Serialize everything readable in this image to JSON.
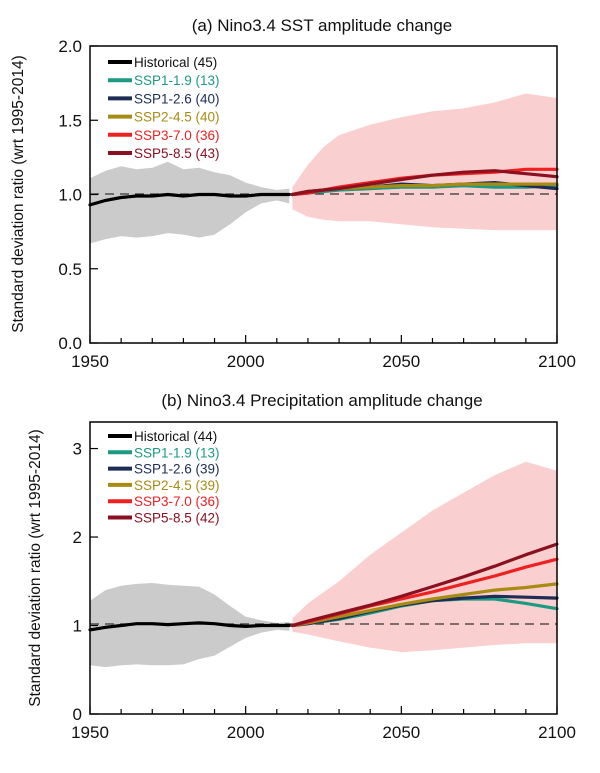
{
  "chart_data": [
    {
      "type": "line",
      "title": "(a) Nino3.4 SST amplitude change",
      "xlabel": "",
      "ylabel": "Standard deviation ratio (wrt 1995-2014)",
      "xlim": [
        1950,
        2100
      ],
      "ylim": [
        0,
        2
      ],
      "xticks": [
        1950,
        2000,
        2050,
        2100
      ],
      "yticks": [
        "0.0",
        "0.5",
        "1.0",
        "1.5",
        "2.0"
      ],
      "reference_line": 1.0,
      "legend_position": "top-left",
      "grid": false,
      "series": [
        {
          "name": "Historical (45)",
          "color": "#000000",
          "band_color": "#c8c8c8",
          "x": [
            1950,
            1955,
            1960,
            1965,
            1970,
            1975,
            1980,
            1985,
            1990,
            1995,
            2000,
            2005,
            2010,
            2014
          ],
          "y": [
            0.93,
            0.96,
            0.98,
            0.99,
            0.99,
            1.0,
            0.99,
            1.0,
            1.0,
            0.99,
            0.99,
            1.0,
            1.0,
            1.0
          ],
          "band_low": [
            0.67,
            0.7,
            0.72,
            0.71,
            0.72,
            0.74,
            0.73,
            0.71,
            0.73,
            0.8,
            0.88,
            0.94,
            0.96,
            0.94
          ],
          "band_high": [
            1.11,
            1.16,
            1.19,
            1.17,
            1.18,
            1.22,
            1.17,
            1.18,
            1.15,
            1.13,
            1.08,
            1.05,
            1.03,
            1.04
          ]
        },
        {
          "name": "SSP1-1.9 (13)",
          "color": "#1c9a82",
          "x": [
            2015,
            2020,
            2030,
            2040,
            2050,
            2060,
            2070,
            2080,
            2090,
            2100
          ],
          "y": [
            1.0,
            1.01,
            1.03,
            1.04,
            1.05,
            1.05,
            1.06,
            1.05,
            1.05,
            1.06
          ]
        },
        {
          "name": "SSP1-2.6 (40)",
          "color": "#1d2d55",
          "x": [
            2015,
            2020,
            2030,
            2040,
            2050,
            2060,
            2070,
            2080,
            2090,
            2100
          ],
          "y": [
            1.0,
            1.02,
            1.04,
            1.05,
            1.07,
            1.06,
            1.07,
            1.08,
            1.06,
            1.04
          ]
        },
        {
          "name": "SSP2-4.5 (40)",
          "color": "#a88b14",
          "x": [
            2015,
            2020,
            2030,
            2040,
            2050,
            2060,
            2070,
            2080,
            2090,
            2100
          ],
          "y": [
            1.0,
            1.02,
            1.04,
            1.05,
            1.06,
            1.06,
            1.07,
            1.07,
            1.07,
            1.07
          ]
        },
        {
          "name": "SSP3-7.0 (36)",
          "color": "#ee2020",
          "band_color": "#f5a8a8",
          "x": [
            2015,
            2020,
            2025,
            2030,
            2040,
            2050,
            2060,
            2070,
            2080,
            2090,
            2100
          ],
          "y": [
            1.0,
            1.01,
            1.03,
            1.05,
            1.08,
            1.11,
            1.13,
            1.14,
            1.15,
            1.17,
            1.17
          ],
          "band_low": [
            0.9,
            0.85,
            0.83,
            0.82,
            0.82,
            0.8,
            0.78,
            0.77,
            0.76,
            0.76,
            0.76
          ],
          "band_high": [
            1.05,
            1.2,
            1.32,
            1.4,
            1.47,
            1.52,
            1.56,
            1.58,
            1.62,
            1.68,
            1.65
          ]
        },
        {
          "name": "SSP5-8.5 (43)",
          "color": "#8b1020",
          "x": [
            2015,
            2020,
            2030,
            2040,
            2050,
            2060,
            2070,
            2080,
            2090,
            2100
          ],
          "y": [
            1.0,
            1.02,
            1.04,
            1.07,
            1.1,
            1.13,
            1.15,
            1.16,
            1.14,
            1.12
          ]
        }
      ]
    },
    {
      "type": "line",
      "title": "(b) Nino3.4 Precipitation amplitude change",
      "xlabel": "",
      "ylabel": "Standard deviation ratio (wrt 1995-2014)",
      "xlim": [
        1950,
        2100
      ],
      "ylim": [
        0,
        3.3
      ],
      "xticks": [
        1950,
        2000,
        2050,
        2100
      ],
      "yticks": [
        "0",
        "1",
        "2",
        "3"
      ],
      "reference_line": 1.0,
      "legend_position": "top-left",
      "grid": false,
      "series": [
        {
          "name": "Historical (44)",
          "color": "#000000",
          "band_color": "#c8c8c8",
          "x": [
            1950,
            1955,
            1960,
            1965,
            1970,
            1975,
            1980,
            1985,
            1990,
            1995,
            2000,
            2005,
            2010,
            2014
          ],
          "y": [
            0.95,
            0.98,
            1.0,
            1.02,
            1.02,
            1.01,
            1.02,
            1.03,
            1.02,
            1.0,
            0.99,
            1.0,
            1.0,
            1.0
          ],
          "band_low": [
            0.55,
            0.53,
            0.55,
            0.56,
            0.55,
            0.55,
            0.56,
            0.62,
            0.66,
            0.76,
            0.86,
            0.92,
            0.95,
            0.94
          ],
          "band_high": [
            1.28,
            1.4,
            1.45,
            1.47,
            1.48,
            1.46,
            1.45,
            1.44,
            1.35,
            1.22,
            1.1,
            1.06,
            1.03,
            1.04
          ]
        },
        {
          "name": "SSP1-1.9 (13)",
          "color": "#1c9a82",
          "x": [
            2015,
            2020,
            2030,
            2040,
            2050,
            2060,
            2070,
            2080,
            2090,
            2100
          ],
          "y": [
            1.0,
            1.02,
            1.07,
            1.14,
            1.22,
            1.28,
            1.3,
            1.3,
            1.25,
            1.19
          ]
        },
        {
          "name": "SSP1-2.6 (39)",
          "color": "#1d2d55",
          "x": [
            2015,
            2020,
            2030,
            2040,
            2050,
            2060,
            2070,
            2080,
            2090,
            2100
          ],
          "y": [
            1.0,
            1.02,
            1.08,
            1.16,
            1.23,
            1.28,
            1.31,
            1.33,
            1.32,
            1.31
          ]
        },
        {
          "name": "SSP2-4.5 (39)",
          "color": "#a88b14",
          "x": [
            2015,
            2020,
            2030,
            2040,
            2050,
            2060,
            2070,
            2080,
            2090,
            2100
          ],
          "y": [
            1.0,
            1.03,
            1.1,
            1.17,
            1.24,
            1.3,
            1.35,
            1.4,
            1.43,
            1.47
          ]
        },
        {
          "name": "SSP3-7.0 (36)",
          "color": "#ee2020",
          "band_color": "#f5a8a8",
          "x": [
            2015,
            2020,
            2030,
            2040,
            2050,
            2060,
            2070,
            2080,
            2090,
            2100
          ],
          "y": [
            1.0,
            1.04,
            1.13,
            1.22,
            1.3,
            1.38,
            1.47,
            1.56,
            1.66,
            1.75
          ],
          "band_low": [
            0.93,
            0.9,
            0.82,
            0.75,
            0.7,
            0.72,
            0.75,
            0.78,
            0.8,
            0.8
          ],
          "band_high": [
            1.08,
            1.25,
            1.5,
            1.8,
            2.05,
            2.3,
            2.5,
            2.7,
            2.85,
            2.75
          ]
        },
        {
          "name": "SSP5-8.5 (42)",
          "color": "#8b1020",
          "x": [
            2015,
            2020,
            2030,
            2040,
            2050,
            2060,
            2070,
            2080,
            2090,
            2100
          ],
          "y": [
            1.0,
            1.05,
            1.14,
            1.23,
            1.33,
            1.44,
            1.55,
            1.67,
            1.8,
            1.92
          ]
        }
      ]
    }
  ]
}
